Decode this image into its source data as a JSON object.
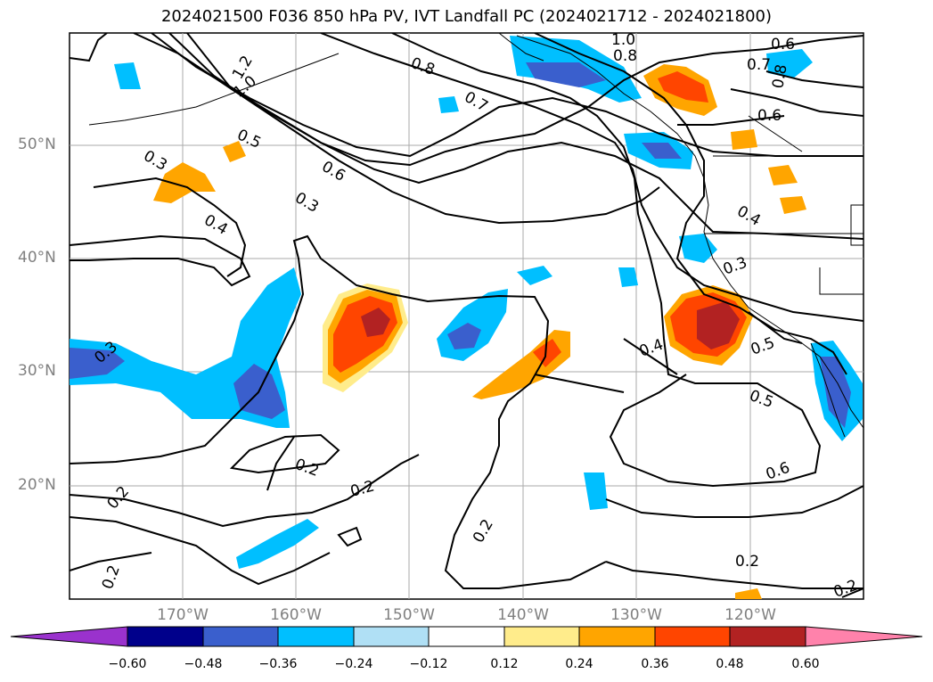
{
  "title": "2024021500 F036 850 hPa PV, IVT Landfall PC (2024021712 - 2024021800)",
  "lat_labels": [
    "50°N",
    "40°N",
    "30°N",
    "20°N"
  ],
  "lon_labels": [
    "170°W",
    "160°W",
    "150°W",
    "140°W",
    "130°W",
    "120°W"
  ],
  "colorbar": {
    "ticks": [
      "−0.60",
      "−0.48",
      "−0.36",
      "−0.24",
      "−0.12",
      "0.12",
      "0.24",
      "0.36",
      "0.48",
      "0.60"
    ],
    "colors": [
      "#9a32cd",
      "#00008b",
      "#3a5fcd",
      "#00bfff",
      "#b0e0f5",
      "#ffffff",
      "#ffec8b",
      "#ffa500",
      "#ff4500",
      "#b22222",
      "#ff82ab"
    ]
  },
  "contour_labels": [
    "1.0",
    "0.8",
    "0.6",
    "0.7",
    "0.8",
    "1.2",
    "1.0",
    "0.8",
    "0.7",
    "0.5",
    "0.6",
    "0.3",
    "0.3",
    "0.4",
    "0.6",
    "0.4",
    "0.3",
    "0.4",
    "0.5",
    "0.5",
    "0.6",
    "0.2",
    "0.2",
    "0.2",
    "0.2",
    "0.2",
    "0.2",
    "0.2",
    "0.3"
  ]
}
